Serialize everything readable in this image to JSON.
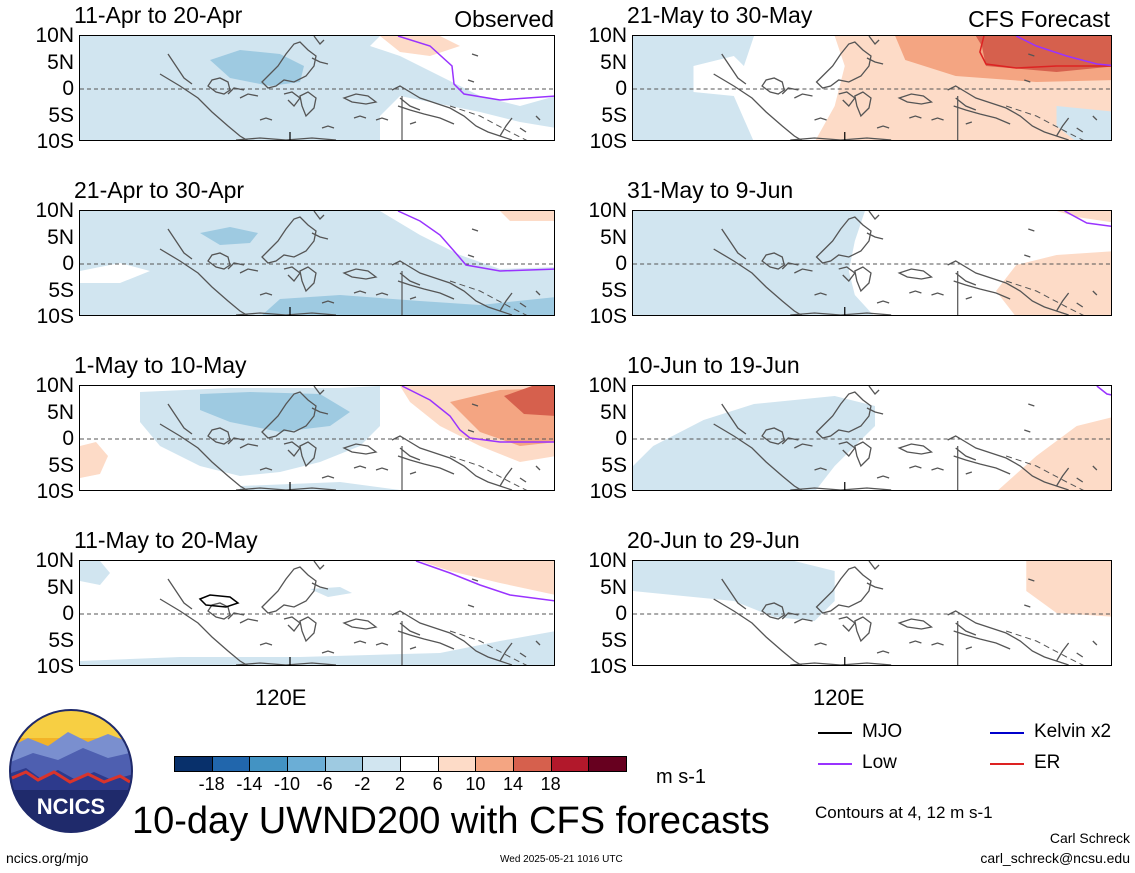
{
  "figure": {
    "title": "10-day UWND200 with CFS forecasts",
    "column_headers": {
      "left": "Observed",
      "right": "CFS Forecast"
    },
    "lat_labels": [
      "10N",
      "5N",
      "0",
      "5S",
      "10S"
    ],
    "lon_label": "120E",
    "units": "m s-1",
    "contour_note": "Contours at 4, 12 m s-1",
    "footer_left": "ncics.org/mjo",
    "footer_center": "Wed 2025-05-21 1016 UTC",
    "author": "Carl Schreck",
    "email": "carl_schreck@ncsu.edu",
    "logo_text": "NCICS"
  },
  "panels": {
    "left": [
      {
        "period": "11-Apr to 20-Apr"
      },
      {
        "period": "21-Apr to 30-Apr"
      },
      {
        "period": "1-May to 10-May"
      },
      {
        "period": "11-May to 20-May"
      }
    ],
    "right": [
      {
        "period": "21-May to 30-May"
      },
      {
        "period": "31-May to 9-Jun"
      },
      {
        "period": "10-Jun to 19-Jun"
      },
      {
        "period": "20-Jun to 29-Jun"
      }
    ]
  },
  "colorbar": {
    "ticks": [
      "-18",
      "-14",
      "-10",
      "-6",
      "-2",
      "2",
      "6",
      "10",
      "14",
      "18"
    ],
    "colors": [
      "#08306b",
      "#2166ac",
      "#4393c3",
      "#6baed6",
      "#9ecae1",
      "#d1e5f0",
      "#ffffff",
      "#fddbc7",
      "#f4a582",
      "#d6604d",
      "#b2182b",
      "#67001f"
    ]
  },
  "legend": {
    "items": [
      {
        "label": "MJO",
        "color": "#000000"
      },
      {
        "label": "Kelvin x2",
        "color": "#0000cc"
      },
      {
        "label": "Low",
        "color": "#9933ff"
      },
      {
        "label": "ER",
        "color": "#dd2222"
      }
    ]
  }
}
